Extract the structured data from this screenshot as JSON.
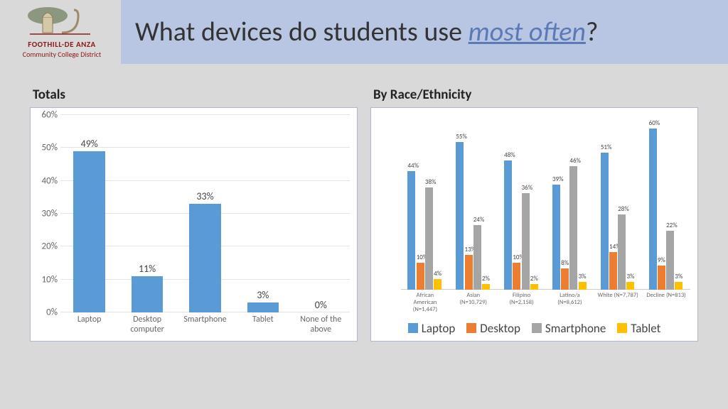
{
  "header": {
    "title_pre": "What devices do students use ",
    "title_emph": "most often",
    "title_post": "?",
    "logo_line1": "FOOTHILL-DE ANZA",
    "logo_line2": "Community College District"
  },
  "totals_chart": {
    "title": "Totals",
    "type": "bar",
    "ylim": [
      0,
      60
    ],
    "ytick_step": 10,
    "categories": [
      "Laptop",
      "Desktop\ncomputer",
      "Smartphone",
      "Tablet",
      "None of the\nabove"
    ],
    "values": [
      49,
      11,
      33,
      3,
      0
    ],
    "bar_color": "#5b9bd5",
    "grid_color": "#e0e4ee",
    "label_fontsize": 14,
    "axis_fontsize": 13
  },
  "race_chart": {
    "title": "By Race/Ethnicity",
    "type": "grouped_bar",
    "ylim": [
      0,
      65
    ],
    "series": [
      {
        "name": "Laptop",
        "color": "#5b9bd5"
      },
      {
        "name": "Desktop",
        "color": "#ed7d31"
      },
      {
        "name": "Smartphone",
        "color": "#a5a5a5"
      },
      {
        "name": "Tablet",
        "color": "#ffc000"
      }
    ],
    "groups": [
      {
        "label": "African\nAmerican\n(N=1,447)",
        "values": [
          44,
          10,
          38,
          4
        ]
      },
      {
        "label": "Asian\n(N=10,729)",
        "values": [
          55,
          13,
          24,
          2
        ]
      },
      {
        "label": "Filipino\n(N=2,158)",
        "values": [
          48,
          10,
          36,
          2
        ]
      },
      {
        "label": "Latino/a\n(N=8,612)",
        "values": [
          39,
          8,
          46,
          3
        ]
      },
      {
        "label": "White (N=7,787)",
        "values": [
          51,
          14,
          28,
          3
        ]
      },
      {
        "label": "Decline (N=813)",
        "values": [
          60,
          9,
          22,
          3
        ]
      }
    ]
  }
}
